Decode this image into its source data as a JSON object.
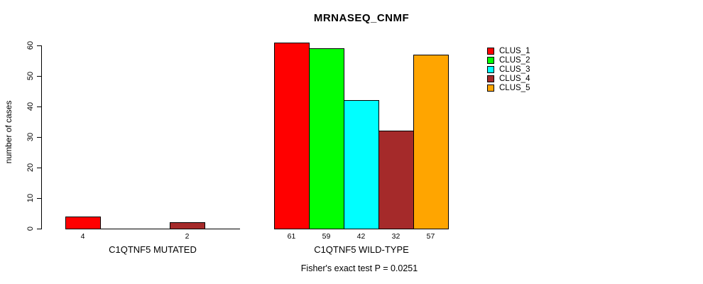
{
  "chart_data": {
    "type": "bar",
    "title": "MRNASEQ_CNMF",
    "ylabel": "number of cases",
    "ylim": [
      0,
      60
    ],
    "yticks": [
      0,
      10,
      20,
      30,
      40,
      50,
      60
    ],
    "grid": false,
    "legend_position": "right",
    "series_names": [
      "CLUS_1",
      "CLUS_2",
      "CLUS_3",
      "CLUS_4",
      "CLUS_5"
    ],
    "colors": [
      "#ff0000",
      "#00ff00",
      "#00ffff",
      "#a52a2a",
      "#ffa500"
    ],
    "groups": [
      {
        "label": "C1QTNF5 MUTATED",
        "values": [
          4,
          0,
          0,
          2,
          0
        ],
        "bar_labels": [
          "4",
          "",
          "",
          "2",
          ""
        ]
      },
      {
        "label": "C1QTNF5 WILD-TYPE",
        "values": [
          61,
          59,
          42,
          32,
          57
        ],
        "bar_labels": [
          "61",
          "59",
          "42",
          "32",
          "57"
        ]
      }
    ],
    "annotation": "Fisher's exact test P = 0.0251",
    "axis_color": "#000000",
    "background_color": "#ffffff"
  }
}
